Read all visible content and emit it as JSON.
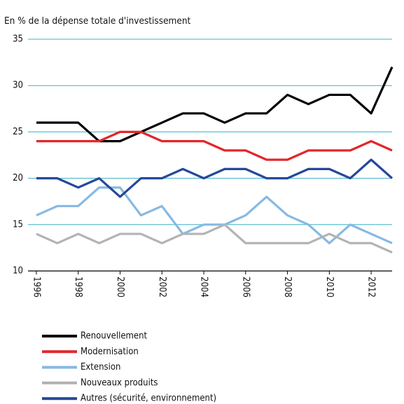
{
  "chart_data": {
    "type": "line",
    "subtitle": "En % de la dépense totale d'investissement",
    "x": [
      1996,
      1997,
      1998,
      1999,
      2000,
      2001,
      2002,
      2003,
      2004,
      2005,
      2006,
      2007,
      2008,
      2009,
      2010,
      2011,
      2012,
      2013
    ],
    "series": [
      {
        "name": "Renouvellement",
        "color": "#000000",
        "values": [
          26,
          26,
          26,
          24,
          24,
          25,
          26,
          27,
          27,
          26,
          27,
          27,
          29,
          28,
          29,
          29,
          27,
          32
        ]
      },
      {
        "name": "Modernisation",
        "color": "#e3262a",
        "values": [
          24,
          24,
          24,
          24,
          25,
          25,
          24,
          24,
          24,
          23,
          23,
          22,
          22,
          23,
          23,
          23,
          24,
          23
        ]
      },
      {
        "name": "Extension",
        "color": "#86b9e3",
        "values": [
          16,
          17,
          17,
          19,
          19,
          16,
          17,
          14,
          15,
          15,
          16,
          18,
          16,
          15,
          13,
          15,
          14,
          13
        ]
      },
      {
        "name": "Nouveaux produits",
        "color": "#b3b3b3",
        "values": [
          14,
          13,
          14,
          13,
          14,
          14,
          13,
          14,
          14,
          15,
          13,
          13,
          13,
          13,
          14,
          13,
          13,
          12
        ]
      },
      {
        "name": "Autres (sécurité, environnement)",
        "color": "#24489a",
        "values": [
          20,
          20,
          19,
          20,
          18,
          20,
          20,
          21,
          20,
          21,
          21,
          20,
          20,
          21,
          21,
          20,
          22,
          20
        ]
      }
    ],
    "xlim": [
      1995.6,
      2013
    ],
    "xticks": [
      1996,
      1998,
      2000,
      2002,
      2004,
      2006,
      2008,
      2010,
      2012
    ],
    "ylim": [
      10,
      35
    ],
    "yticks": [
      10,
      15,
      20,
      25,
      30,
      35
    ],
    "grid": true
  }
}
